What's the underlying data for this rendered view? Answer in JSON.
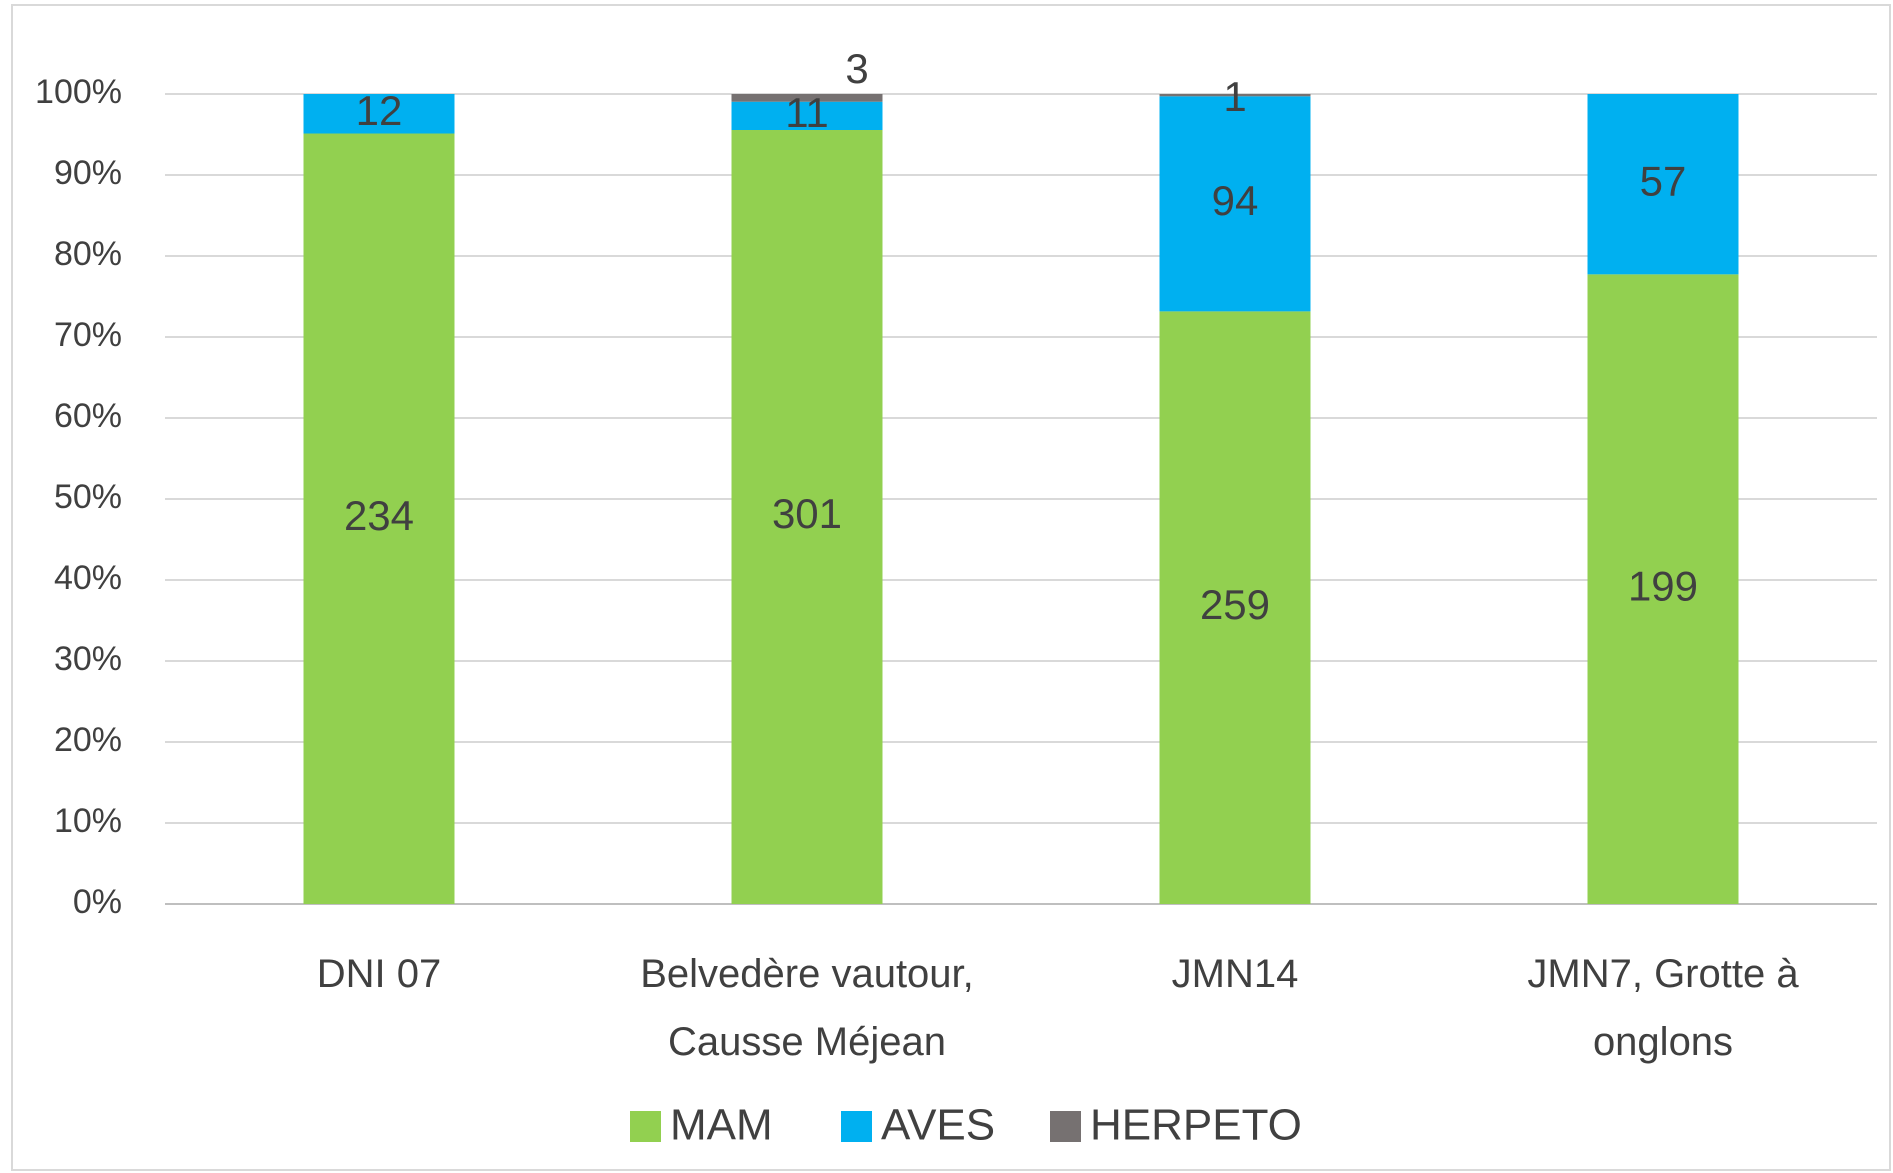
{
  "chart_data": {
    "type": "bar",
    "stacked": "percent",
    "categories": [
      "DNI 07",
      "Belvedère vautour, Causse Méjean",
      "JMN14",
      "JMN7, Grotte à onglons"
    ],
    "series": [
      {
        "name": "MAM",
        "color": "#92d050",
        "values": [
          234,
          301,
          259,
          199
        ]
      },
      {
        "name": "AVES",
        "color": "#00b0f0",
        "values": [
          12,
          11,
          94,
          57
        ]
      },
      {
        "name": "HERPETO",
        "color": "#767171",
        "values": [
          null,
          3,
          1,
          null
        ]
      }
    ],
    "ylim": [
      0,
      100
    ],
    "yticks": [
      {
        "value": 0,
        "label": "0%"
      },
      {
        "value": 10,
        "label": "10%"
      },
      {
        "value": 20,
        "label": "20%"
      },
      {
        "value": 30,
        "label": "30%"
      },
      {
        "value": 40,
        "label": "40%"
      },
      {
        "value": 50,
        "label": "50%"
      },
      {
        "value": 60,
        "label": "60%"
      },
      {
        "value": 70,
        "label": "70%"
      },
      {
        "value": 80,
        "label": "80%"
      },
      {
        "value": 90,
        "label": "90%"
      },
      {
        "value": 100,
        "label": "100%"
      }
    ],
    "grid": true,
    "legend": "bottom"
  }
}
